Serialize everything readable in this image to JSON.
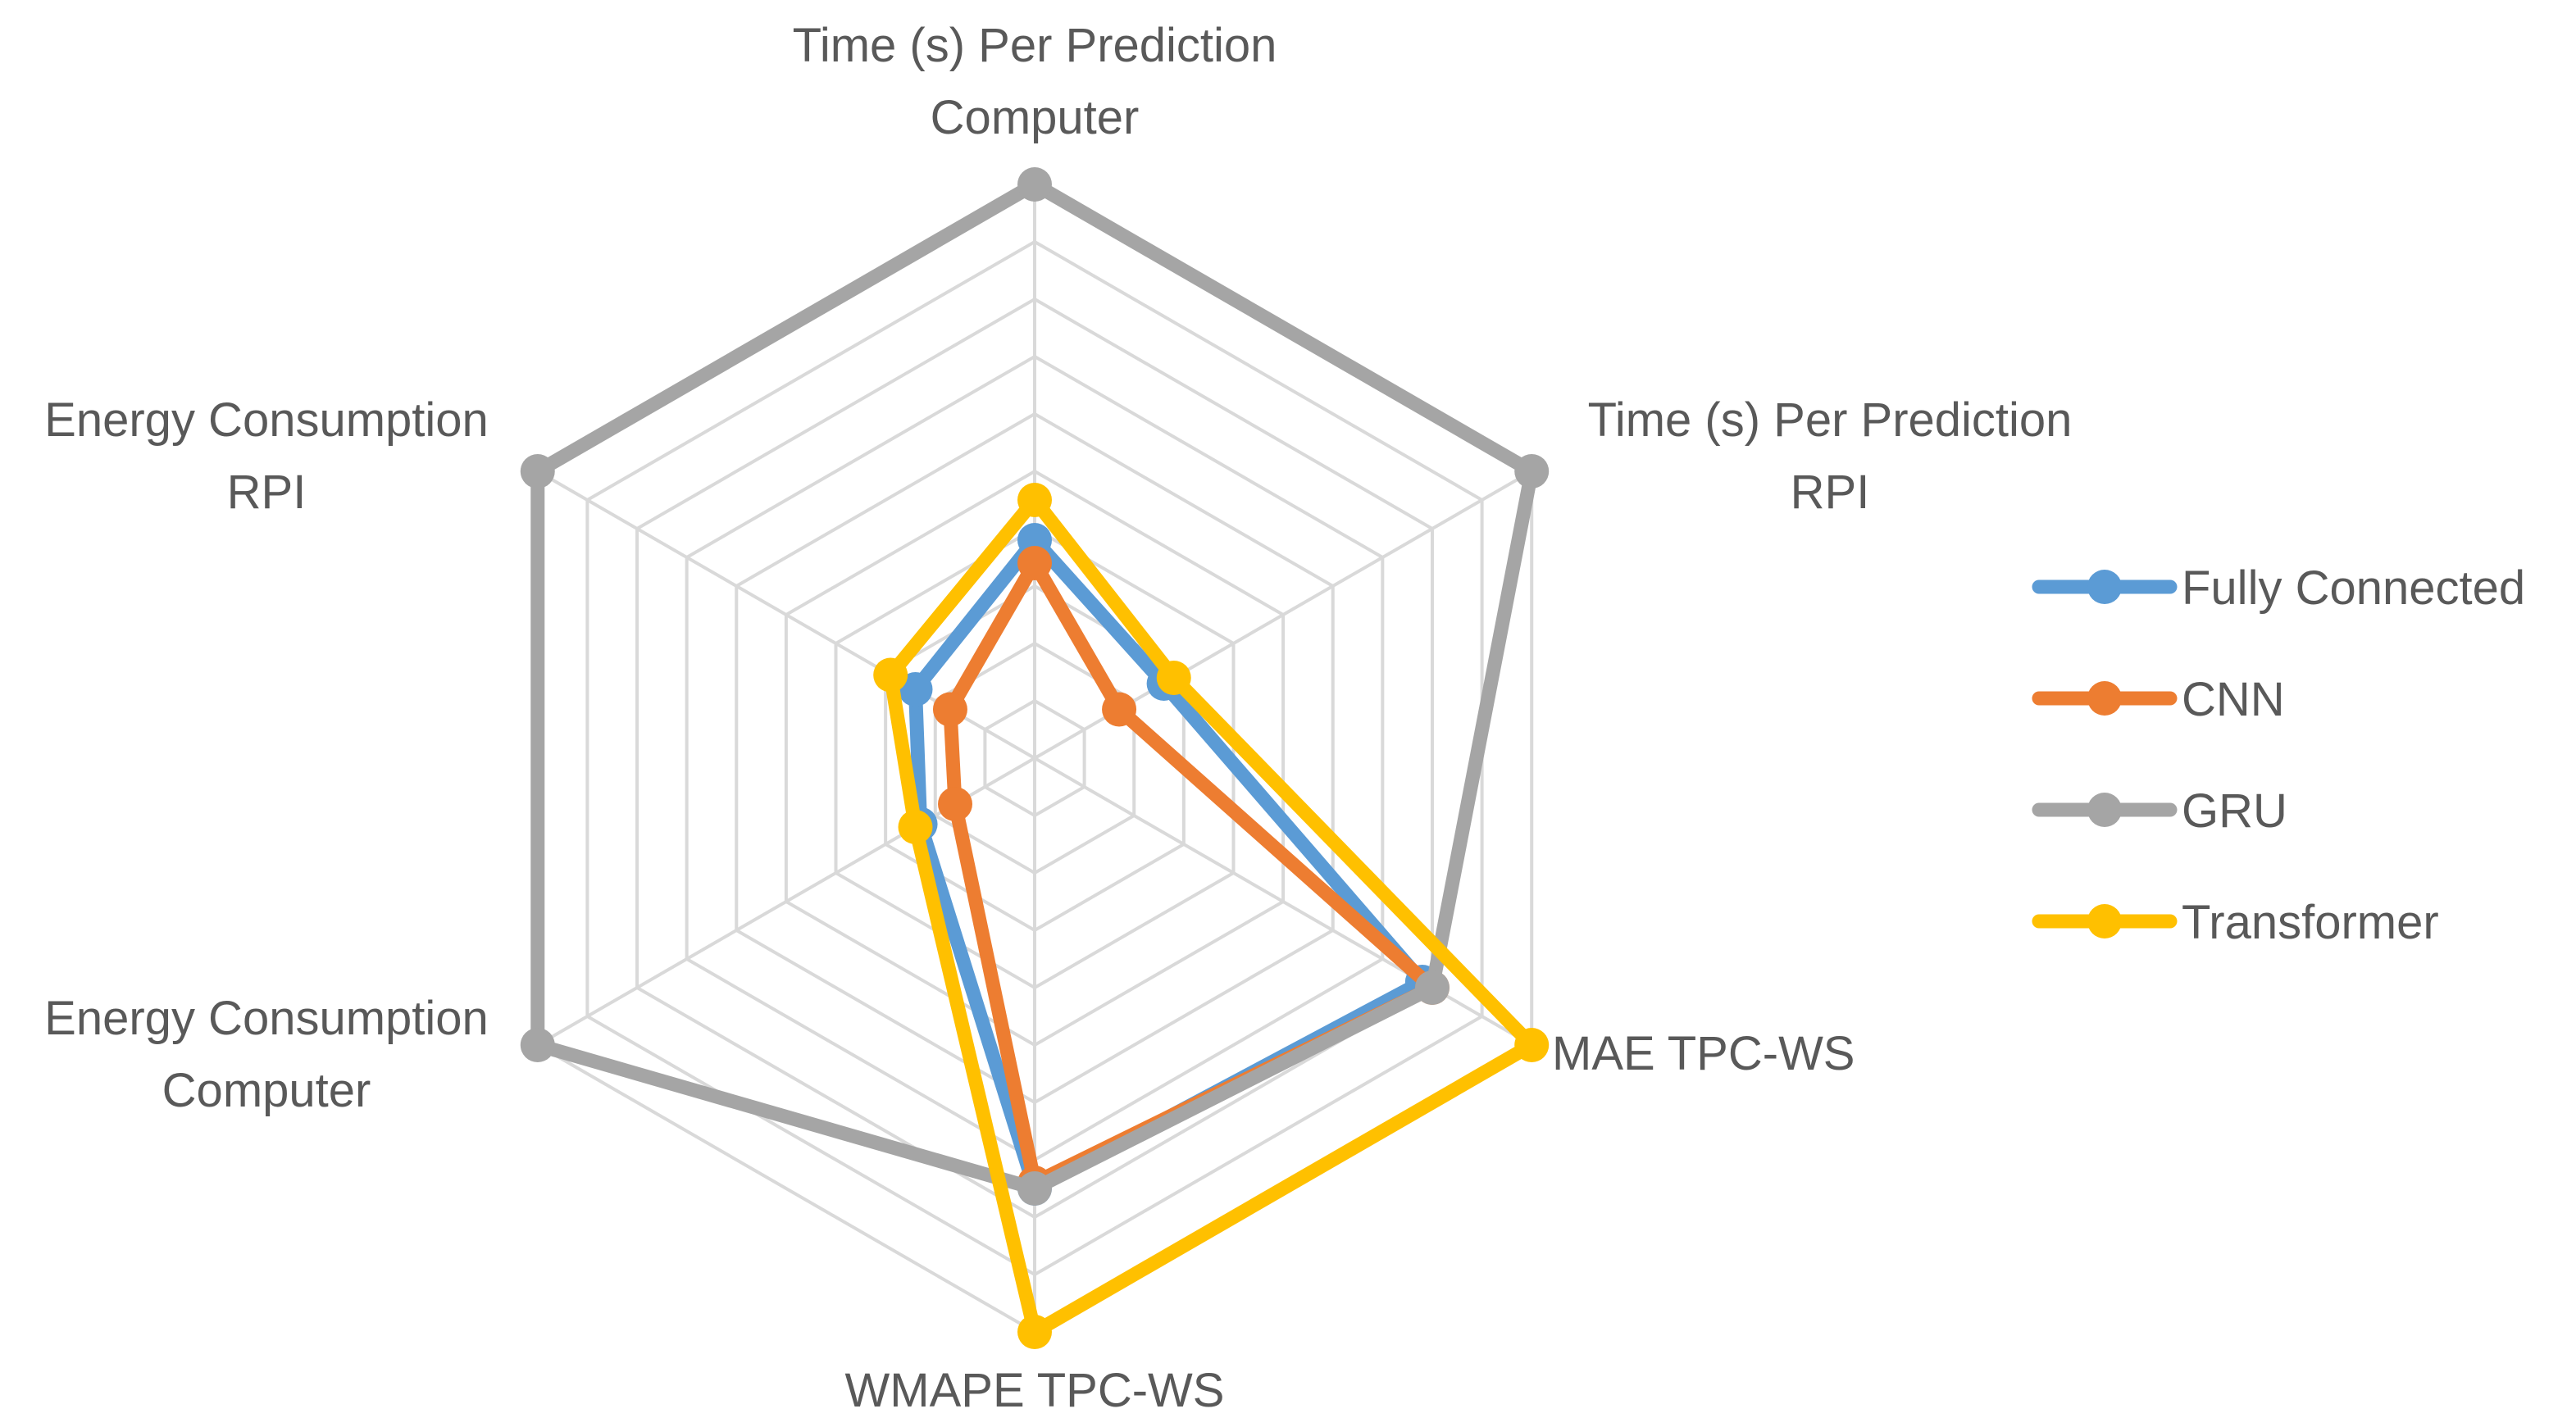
{
  "chart_data": {
    "type": "radar",
    "title": "",
    "axes": [
      [
        "Time (s) Per Prediction",
        "Computer"
      ],
      [
        "Time (s) Per Prediction",
        "RPI"
      ],
      [
        "MAE TPC-WS"
      ],
      [
        "WMAPE TPC-WS"
      ],
      [
        "Energy Consumption",
        "Computer"
      ],
      [
        "Energy Consumption",
        "RPI"
      ]
    ],
    "rmax": 10,
    "rings": 10,
    "series": [
      {
        "name": "Fully Connected",
        "color": "#5b9bd5",
        "values": [
          3.8,
          2.6,
          7.8,
          7.5,
          2.3,
          2.4
        ]
      },
      {
        "name": "CNN",
        "color": "#ed7d31",
        "values": [
          3.4,
          1.7,
          8.0,
          7.4,
          1.6,
          1.7
        ]
      },
      {
        "name": "GRU",
        "color": "#a5a5a5",
        "values": [
          10,
          10,
          8.0,
          7.5,
          10,
          10
        ]
      },
      {
        "name": "Transformer",
        "color": "#ffc000",
        "values": [
          4.5,
          2.8,
          10,
          10,
          2.4,
          2.9
        ]
      }
    ],
    "legend_position": "right"
  }
}
